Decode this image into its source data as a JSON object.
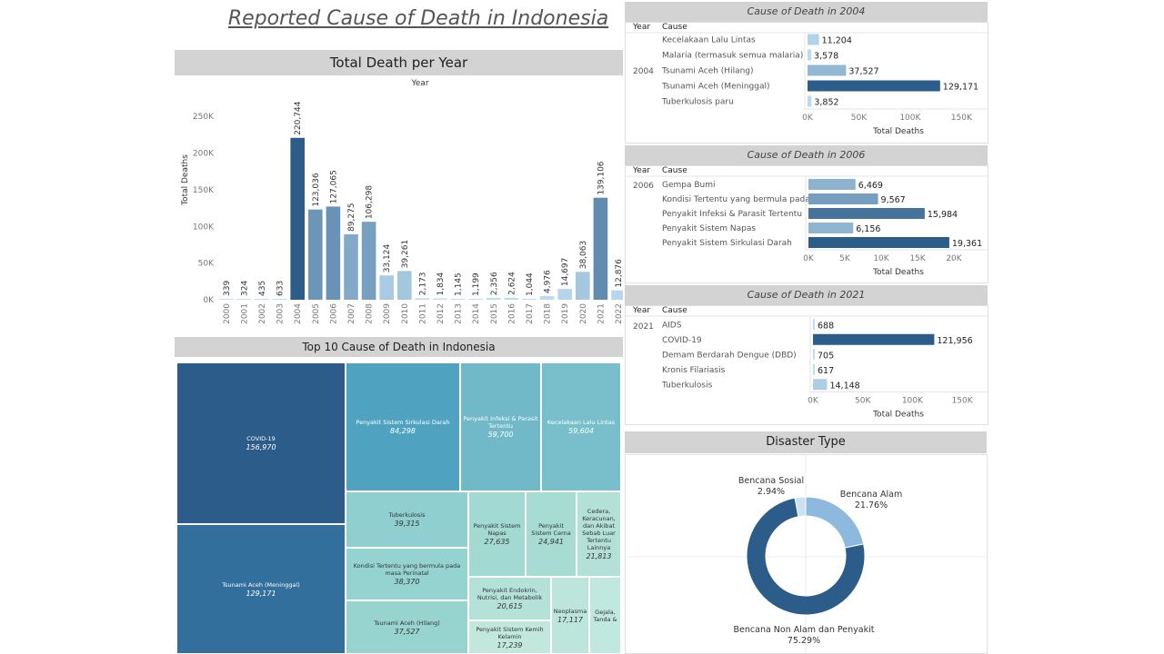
{
  "title": "Reported Cause of Death in Indonesia",
  "colors": {
    "dark": "#2b5c8a",
    "mid": "#4f87b8",
    "light": "#a8cde8",
    "header": "#d3d3d3"
  },
  "total_panel": {
    "title": "Total Death per Year",
    "column_header": "Year"
  },
  "top10_panel": {
    "title": "Top 10 Cause of Death in Indonesia"
  },
  "disaster_panel": {
    "title": "Disaster Type"
  },
  "chart_data": [
    {
      "type": "bar",
      "title": "Total Death per Year",
      "xlabel": "Year",
      "ylabel": "Total Deaths",
      "ylim": [
        0,
        270000
      ],
      "yticks": [
        "0K",
        "50K",
        "100K",
        "150K",
        "200K",
        "250K"
      ],
      "categories": [
        "2000",
        "2001",
        "2002",
        "2003",
        "2004",
        "2005",
        "2006",
        "2007",
        "2008",
        "2009",
        "2010",
        "2011",
        "2012",
        "2013",
        "2014",
        "2015",
        "2016",
        "2017",
        "2018",
        "2019",
        "2020",
        "2021",
        "2022"
      ],
      "values": [
        339,
        324,
        435,
        633,
        220744,
        123036,
        127065,
        89275,
        106298,
        33124,
        39261,
        2173,
        1834,
        1145,
        1199,
        2356,
        2624,
        1044,
        4976,
        14697,
        38063,
        139106,
        12876
      ],
      "labels": [
        "339",
        "324",
        "435",
        "633",
        "220,744",
        "123,036",
        "127,065",
        "89,275",
        "106,298",
        "33,124",
        "39,261",
        "2,173",
        "1,834",
        "1,145",
        "1,199",
        "2,356",
        "2,624",
        "1,044",
        "4,976",
        "14,697",
        "38,063",
        "139,106",
        "12,876"
      ]
    },
    {
      "type": "bar",
      "title": "Cause of Death in 2004",
      "year": "2004",
      "col_year": "Year",
      "col_cause": "Cause",
      "xlabel": "Total Deaths",
      "xlim": [
        0,
        160000
      ],
      "xticks": [
        "0K",
        "50K",
        "100K",
        "150K"
      ],
      "categories": [
        "Kecelakaan Lalu Lintas",
        "Malaria (termasuk semua malaria)",
        "Tsunami Aceh (Hilang)",
        "Tsunami Aceh (Meninggal)",
        "Tuberkulosis paru"
      ],
      "values": [
        11204,
        3578,
        37527,
        129171,
        3852
      ],
      "labels": [
        "11,204",
        "3,578",
        "37,527",
        "129,171",
        "3,852"
      ]
    },
    {
      "type": "bar",
      "title": "Cause of Death in 2006",
      "year": "2006",
      "col_year": "Year",
      "col_cause": "Cause",
      "xlabel": "Total Deaths",
      "xlim": [
        0,
        22000
      ],
      "xticks": [
        "0K",
        "5K",
        "10K",
        "15K",
        "20K"
      ],
      "categories": [
        "Gempa Bumi",
        "Kondisi Tertentu yang bermula pada ..",
        "Penyakit Infeksi & Parasit Tertentu",
        "Penyakit Sistem Napas",
        "Penyakit Sistem Sirkulasi Darah"
      ],
      "values": [
        6469,
        9567,
        15984,
        6156,
        19361
      ],
      "labels": [
        "6,469",
        "9,567",
        "15,984",
        "6,156",
        "19,361"
      ]
    },
    {
      "type": "bar",
      "title": "Cause of Death in 2021",
      "year": "2021",
      "col_year": "Year",
      "col_cause": "Cause",
      "xlabel": "Total Deaths",
      "xlim": [
        0,
        160000
      ],
      "xticks": [
        "0K",
        "50K",
        "100K",
        "150K"
      ],
      "categories": [
        "AIDS",
        "COVID-19",
        "Demam Berdarah Dengue (DBD)",
        "Kronis Filariasis",
        "Tuberkulosis"
      ],
      "values": [
        688,
        121956,
        705,
        617,
        14148
      ],
      "labels": [
        "688",
        "121,956",
        "705",
        "617",
        "14,148"
      ]
    },
    {
      "type": "treemap",
      "title": "Top 10 Cause of Death in Indonesia",
      "items": [
        {
          "name": "COVID-19",
          "value": "156,970"
        },
        {
          "name": "Tsunami Aceh (Meninggal)",
          "value": "129,171"
        },
        {
          "name": "Penyakit Sistem Sirkulasi Darah",
          "value": "84,298"
        },
        {
          "name": "Penyakit Infeksi & Parasit Tertentu",
          "value": "59,700"
        },
        {
          "name": "Kecelakaan Lalu Lintas",
          "value": "59,604"
        },
        {
          "name": "Tuberkulosis",
          "value": "39,315"
        },
        {
          "name": "Kondisi Tertentu yang bermula pada masa Perinatal",
          "value": "38,370"
        },
        {
          "name": "Tsunami Aceh (Hilang)",
          "value": "37,527"
        },
        {
          "name": "Penyakit Sistem Napas",
          "value": "27,635"
        },
        {
          "name": "Penyakit Sistem Cerna",
          "value": "24,941"
        },
        {
          "name": "Cedera, Keracunan, dan Akibat Sebab Luar Tertentu Lainnya",
          "value": "21,813"
        },
        {
          "name": "Penyakit Endokrin, Nutrisi, dan Metabolik",
          "value": "20,615"
        },
        {
          "name": "Neoplasma",
          "value": "17,117"
        },
        {
          "name": "Gejala, Tanda &",
          "value": ""
        },
        {
          "name": "Penyakit Sistem Kemih Kelamin",
          "value": "17,239"
        }
      ]
    },
    {
      "type": "pie",
      "title": "Disaster Type",
      "slices": [
        {
          "name": "Bencana Alam",
          "pct": 21.76,
          "label": "21.76%",
          "color": "#8db9de"
        },
        {
          "name": "Bencana Non Alam dan Penyakit",
          "pct": 75.29,
          "label": "75.29%",
          "color": "#2b5c8a"
        },
        {
          "name": "Bencana Sosial",
          "pct": 2.94,
          "label": "2.94%",
          "color": "#c9e2f4"
        }
      ]
    }
  ]
}
